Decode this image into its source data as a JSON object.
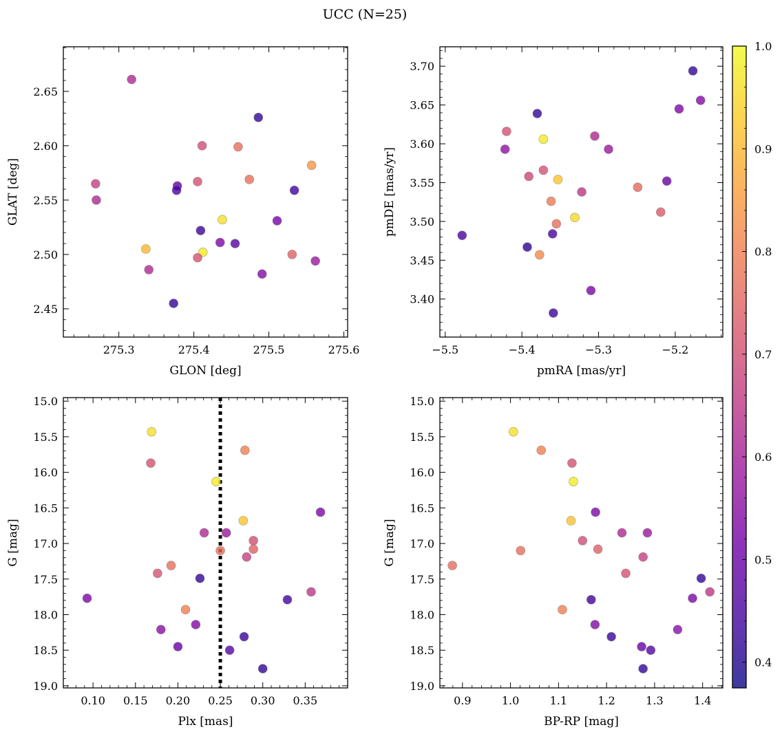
{
  "figure": {
    "title": "UCC (N=25)"
  },
  "colorbar": {
    "range": [
      0.375,
      1.0
    ],
    "ticks": [
      0.4,
      0.5,
      0.6,
      0.7,
      0.8,
      0.9,
      1.0
    ],
    "tick_labels": [
      "0.4",
      "0.5",
      "0.6",
      "0.7",
      "0.8",
      "0.9",
      "1.0"
    ],
    "colormap": "plasma",
    "stops": [
      "#0d0887",
      "#46039f",
      "#7201a8",
      "#9c179e",
      "#bd3786",
      "#d8576b",
      "#ed7953",
      "#fb9f3a",
      "#fdca26",
      "#f0f921"
    ],
    "alpha": 0.8
  },
  "chart_data": [
    {
      "type": "scatter",
      "xlabel": "GLON [deg]",
      "ylabel": "GLAT [deg]",
      "xlim": [
        275.226,
        275.605
      ],
      "ylim": [
        2.424,
        2.691
      ],
      "xticks": [
        275.3,
        275.4,
        275.5,
        275.6
      ],
      "xtick_labels": [
        "275.3",
        "275.4",
        "275.5",
        "275.6"
      ],
      "yticks": [
        2.45,
        2.5,
        2.55,
        2.6,
        2.65
      ],
      "ytick_labels": [
        "2.45",
        "2.50",
        "2.55",
        "2.60",
        "2.65"
      ],
      "points": [
        {
          "x": 275.317,
          "y": 2.661,
          "c": 0.62
        },
        {
          "x": 275.486,
          "y": 2.626,
          "c": 0.42
        },
        {
          "x": 275.411,
          "y": 2.6,
          "c": 0.7
        },
        {
          "x": 275.459,
          "y": 2.599,
          "c": 0.77
        },
        {
          "x": 275.557,
          "y": 2.582,
          "c": 0.84
        },
        {
          "x": 275.269,
          "y": 2.565,
          "c": 0.67
        },
        {
          "x": 275.474,
          "y": 2.569,
          "c": 0.77
        },
        {
          "x": 275.405,
          "y": 2.567,
          "c": 0.71
        },
        {
          "x": 275.378,
          "y": 2.563,
          "c": 0.48
        },
        {
          "x": 275.377,
          "y": 2.559,
          "c": 0.45
        },
        {
          "x": 275.534,
          "y": 2.559,
          "c": 0.44
        },
        {
          "x": 275.27,
          "y": 2.55,
          "c": 0.62
        },
        {
          "x": 275.438,
          "y": 2.532,
          "c": 0.96
        },
        {
          "x": 275.511,
          "y": 2.531,
          "c": 0.52
        },
        {
          "x": 275.409,
          "y": 2.522,
          "c": 0.43
        },
        {
          "x": 275.435,
          "y": 2.511,
          "c": 0.53
        },
        {
          "x": 275.455,
          "y": 2.51,
          "c": 0.47
        },
        {
          "x": 275.336,
          "y": 2.505,
          "c": 0.9
        },
        {
          "x": 275.412,
          "y": 2.502,
          "c": 0.98
        },
        {
          "x": 275.531,
          "y": 2.5,
          "c": 0.74
        },
        {
          "x": 275.405,
          "y": 2.497,
          "c": 0.71
        },
        {
          "x": 275.562,
          "y": 2.494,
          "c": 0.58
        },
        {
          "x": 275.34,
          "y": 2.486,
          "c": 0.62
        },
        {
          "x": 275.491,
          "y": 2.482,
          "c": 0.54
        },
        {
          "x": 275.373,
          "y": 2.455,
          "c": 0.42
        }
      ]
    },
    {
      "type": "scatter",
      "xlabel": "pmRA [mas/yr]",
      "ylabel": "pmDE [mas/yr]",
      "xlim": [
        -5.507,
        -5.138
      ],
      "ylim": [
        3.351,
        3.725
      ],
      "xticks": [
        -5.5,
        -5.4,
        -5.3,
        -5.2
      ],
      "xtick_labels": [
        "−5.5",
        "−5.4",
        "−5.3",
        "−5.2"
      ],
      "yticks": [
        3.4,
        3.45,
        3.5,
        3.55,
        3.6,
        3.65,
        3.7
      ],
      "ytick_labels": [
        "3.40",
        "3.45",
        "3.50",
        "3.55",
        "3.60",
        "3.65",
        "3.70"
      ],
      "points": [
        {
          "x": -5.177,
          "y": 3.694,
          "c": 0.42
        },
        {
          "x": -5.167,
          "y": 3.656,
          "c": 0.54
        },
        {
          "x": -5.195,
          "y": 3.645,
          "c": 0.53
        },
        {
          "x": -5.38,
          "y": 3.639,
          "c": 0.42
        },
        {
          "x": -5.42,
          "y": 3.616,
          "c": 0.71
        },
        {
          "x": -5.305,
          "y": 3.61,
          "c": 0.62
        },
        {
          "x": -5.372,
          "y": 3.606,
          "c": 0.98
        },
        {
          "x": -5.422,
          "y": 3.593,
          "c": 0.56
        },
        {
          "x": -5.287,
          "y": 3.593,
          "c": 0.58
        },
        {
          "x": -5.372,
          "y": 3.566,
          "c": 0.71
        },
        {
          "x": -5.391,
          "y": 3.558,
          "c": 0.69
        },
        {
          "x": -5.353,
          "y": 3.554,
          "c": 0.92
        },
        {
          "x": -5.211,
          "y": 3.552,
          "c": 0.5
        },
        {
          "x": -5.249,
          "y": 3.544,
          "c": 0.76
        },
        {
          "x": -5.322,
          "y": 3.538,
          "c": 0.65
        },
        {
          "x": -5.362,
          "y": 3.526,
          "c": 0.79
        },
        {
          "x": -5.219,
          "y": 3.512,
          "c": 0.73
        },
        {
          "x": -5.331,
          "y": 3.505,
          "c": 0.95
        },
        {
          "x": -5.355,
          "y": 3.497,
          "c": 0.77
        },
        {
          "x": -5.36,
          "y": 3.484,
          "c": 0.45
        },
        {
          "x": -5.478,
          "y": 3.482,
          "c": 0.45
        },
        {
          "x": -5.393,
          "y": 3.467,
          "c": 0.41
        },
        {
          "x": -5.377,
          "y": 3.457,
          "c": 0.82
        },
        {
          "x": -5.31,
          "y": 3.411,
          "c": 0.53
        },
        {
          "x": -5.359,
          "y": 3.382,
          "c": 0.43
        }
      ]
    },
    {
      "type": "scatter",
      "xlabel": "Plx [mas]",
      "ylabel": "G [mag]",
      "y_inverted": true,
      "xlim": [
        0.065,
        0.4
      ],
      "ylim": [
        19.03,
        14.95
      ],
      "xticks": [
        0.1,
        0.15,
        0.2,
        0.25,
        0.3,
        0.35
      ],
      "xtick_labels": [
        "0.10",
        "0.15",
        "0.20",
        "0.25",
        "0.30",
        "0.35"
      ],
      "yticks": [
        15.0,
        15.5,
        16.0,
        16.5,
        17.0,
        17.5,
        18.0,
        18.5,
        19.0
      ],
      "ytick_labels": [
        "15.0",
        "15.5",
        "16.0",
        "16.5",
        "17.0",
        "17.5",
        "18.0",
        "18.5",
        "19.0"
      ],
      "vline": {
        "x": 0.25,
        "style": "dotted"
      },
      "points": [
        {
          "x": 0.169,
          "y": 15.43,
          "c": 0.96
        },
        {
          "x": 0.279,
          "y": 15.69,
          "c": 0.8
        },
        {
          "x": 0.168,
          "y": 15.87,
          "c": 0.71
        },
        {
          "x": 0.245,
          "y": 16.13,
          "c": 0.98
        },
        {
          "x": 0.368,
          "y": 16.56,
          "c": 0.53
        },
        {
          "x": 0.277,
          "y": 16.68,
          "c": 0.92
        },
        {
          "x": 0.231,
          "y": 16.85,
          "c": 0.62
        },
        {
          "x": 0.257,
          "y": 16.85,
          "c": 0.58
        },
        {
          "x": 0.289,
          "y": 16.96,
          "c": 0.7
        },
        {
          "x": 0.289,
          "y": 17.08,
          "c": 0.74
        },
        {
          "x": 0.25,
          "y": 17.1,
          "c": 0.77
        },
        {
          "x": 0.281,
          "y": 17.19,
          "c": 0.67
        },
        {
          "x": 0.192,
          "y": 17.31,
          "c": 0.77
        },
        {
          "x": 0.176,
          "y": 17.42,
          "c": 0.71
        },
        {
          "x": 0.226,
          "y": 17.49,
          "c": 0.42
        },
        {
          "x": 0.357,
          "y": 17.68,
          "c": 0.65
        },
        {
          "x": 0.093,
          "y": 17.77,
          "c": 0.53
        },
        {
          "x": 0.329,
          "y": 17.79,
          "c": 0.44
        },
        {
          "x": 0.209,
          "y": 17.93,
          "c": 0.8
        },
        {
          "x": 0.221,
          "y": 18.14,
          "c": 0.54
        },
        {
          "x": 0.18,
          "y": 18.21,
          "c": 0.55
        },
        {
          "x": 0.278,
          "y": 18.31,
          "c": 0.43
        },
        {
          "x": 0.2,
          "y": 18.45,
          "c": 0.5
        },
        {
          "x": 0.261,
          "y": 18.5,
          "c": 0.47
        },
        {
          "x": 0.3,
          "y": 18.76,
          "c": 0.42
        }
      ]
    },
    {
      "type": "scatter",
      "xlabel": "BP-RP [mag]",
      "ylabel": "G [mag]",
      "y_inverted": true,
      "xlim": [
        0.853,
        1.442
      ],
      "ylim": [
        19.03,
        14.95
      ],
      "xticks": [
        0.9,
        1.0,
        1.1,
        1.2,
        1.3,
        1.4
      ],
      "xtick_labels": [
        "0.9",
        "1.0",
        "1.1",
        "1.2",
        "1.3",
        "1.4"
      ],
      "yticks": [
        15.0,
        15.5,
        16.0,
        16.5,
        17.0,
        17.5,
        18.0,
        18.5,
        19.0
      ],
      "ytick_labels": [
        "15.0",
        "15.5",
        "16.0",
        "16.5",
        "17.0",
        "17.5",
        "18.0",
        "18.5",
        "19.0"
      ],
      "points": [
        {
          "x": 1.006,
          "y": 15.43,
          "c": 0.96
        },
        {
          "x": 1.064,
          "y": 15.69,
          "c": 0.8
        },
        {
          "x": 1.128,
          "y": 15.87,
          "c": 0.71
        },
        {
          "x": 1.131,
          "y": 16.13,
          "c": 0.98
        },
        {
          "x": 1.177,
          "y": 16.56,
          "c": 0.53
        },
        {
          "x": 1.126,
          "y": 16.68,
          "c": 0.92
        },
        {
          "x": 1.232,
          "y": 16.85,
          "c": 0.62
        },
        {
          "x": 1.285,
          "y": 16.85,
          "c": 0.58
        },
        {
          "x": 1.15,
          "y": 16.96,
          "c": 0.7
        },
        {
          "x": 1.182,
          "y": 17.08,
          "c": 0.74
        },
        {
          "x": 1.021,
          "y": 17.1,
          "c": 0.77
        },
        {
          "x": 1.276,
          "y": 17.19,
          "c": 0.67
        },
        {
          "x": 0.879,
          "y": 17.31,
          "c": 0.77
        },
        {
          "x": 1.24,
          "y": 17.42,
          "c": 0.71
        },
        {
          "x": 1.397,
          "y": 17.49,
          "c": 0.42
        },
        {
          "x": 1.415,
          "y": 17.68,
          "c": 0.65
        },
        {
          "x": 1.379,
          "y": 17.77,
          "c": 0.53
        },
        {
          "x": 1.168,
          "y": 17.79,
          "c": 0.44
        },
        {
          "x": 1.108,
          "y": 17.93,
          "c": 0.8
        },
        {
          "x": 1.176,
          "y": 18.14,
          "c": 0.54
        },
        {
          "x": 1.348,
          "y": 18.21,
          "c": 0.55
        },
        {
          "x": 1.21,
          "y": 18.31,
          "c": 0.43
        },
        {
          "x": 1.273,
          "y": 18.45,
          "c": 0.5
        },
        {
          "x": 1.292,
          "y": 18.5,
          "c": 0.47
        },
        {
          "x": 1.276,
          "y": 18.76,
          "c": 0.42
        }
      ]
    }
  ]
}
